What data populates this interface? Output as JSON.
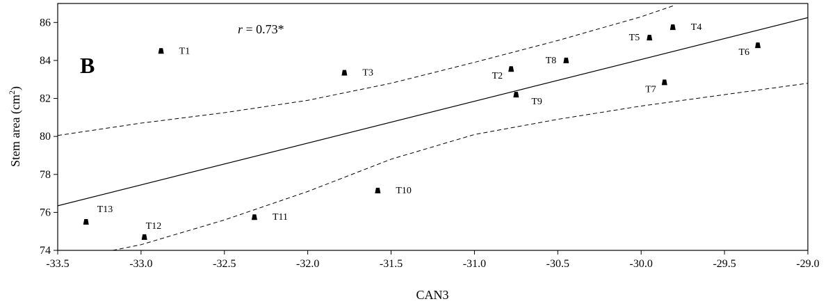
{
  "chart_data": {
    "type": "scatter",
    "panel_letter": "B",
    "annotation": {
      "r_symbol": "r",
      "r_value": " = 0.73*"
    },
    "xlabel": "CAN3",
    "ylabel": {
      "text": "Stem area (cm",
      "superscript": "2",
      "close": ")"
    },
    "xlim": [
      -33.5,
      -29.0
    ],
    "ylim": [
      74,
      87
    ],
    "x_ticks": [
      "-33.5",
      "-33.0",
      "-32.5",
      "-32.0",
      "-31.5",
      "-31.0",
      "-30.5",
      "-30.0",
      "-29.5",
      "-29.0"
    ],
    "y_ticks": [
      "74",
      "76",
      "78",
      "80",
      "82",
      "84",
      "86"
    ],
    "grid": false,
    "points": [
      {
        "label": "T1",
        "x": -32.88,
        "y": 84.5,
        "label_pos": "right"
      },
      {
        "label": "T2",
        "x": -30.78,
        "y": 83.55,
        "label_pos": "below-left"
      },
      {
        "label": "T3",
        "x": -31.78,
        "y": 83.35,
        "label_pos": "right"
      },
      {
        "label": "T4",
        "x": -29.81,
        "y": 85.75,
        "label_pos": "right"
      },
      {
        "label": "T5",
        "x": -29.95,
        "y": 85.2,
        "label_pos": "left"
      },
      {
        "label": "T6",
        "x": -29.3,
        "y": 84.8,
        "label_pos": "below-left"
      },
      {
        "label": "T7",
        "x": -29.86,
        "y": 82.85,
        "label_pos": "below-left"
      },
      {
        "label": "T8",
        "x": -30.45,
        "y": 84.0,
        "label_pos": "left"
      },
      {
        "label": "T9",
        "x": -30.75,
        "y": 82.2,
        "label_pos": "below-right"
      },
      {
        "label": "T10",
        "x": -31.58,
        "y": 77.15,
        "label_pos": "right"
      },
      {
        "label": "T11",
        "x": -32.32,
        "y": 75.75,
        "label_pos": "right"
      },
      {
        "label": "T12",
        "x": -32.98,
        "y": 74.7,
        "label_pos": "above"
      },
      {
        "label": "T13",
        "x": -33.33,
        "y": 75.5,
        "label_pos": "above-right"
      }
    ],
    "regression": {
      "slope": 2.2016,
      "intercept": 150.1,
      "style": "solid"
    },
    "confidence_band": {
      "style": "dashed",
      "upper": [
        [
          -33.5,
          80.05
        ],
        [
          -33.0,
          80.7
        ],
        [
          -32.5,
          81.25
        ],
        [
          -32.0,
          81.9
        ],
        [
          -31.5,
          82.8
        ],
        [
          -31.0,
          83.9
        ],
        [
          -30.5,
          85.05
        ],
        [
          -30.0,
          86.3
        ],
        [
          -29.8,
          86.9
        ]
      ],
      "lower": [
        [
          -33.17,
          74.0
        ],
        [
          -33.0,
          74.3
        ],
        [
          -32.5,
          75.6
        ],
        [
          -32.0,
          77.1
        ],
        [
          -31.5,
          78.8
        ],
        [
          -31.0,
          80.1
        ],
        [
          -30.5,
          80.9
        ],
        [
          -30.0,
          81.6
        ],
        [
          -29.5,
          82.2
        ],
        [
          -29.0,
          82.8
        ]
      ]
    }
  }
}
